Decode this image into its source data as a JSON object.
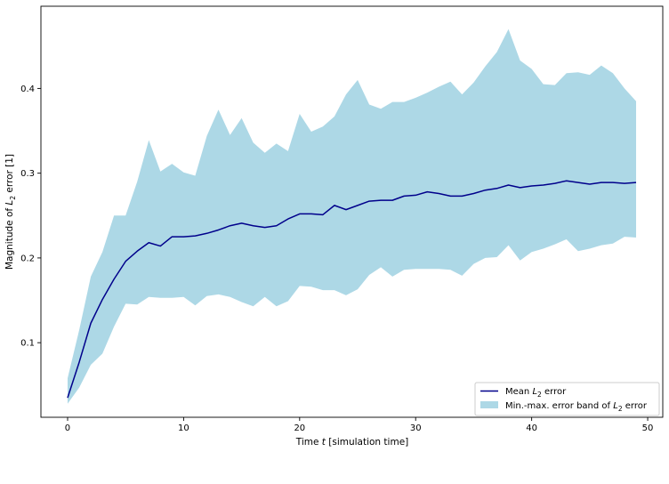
{
  "chart_data": {
    "type": "line",
    "xlabel": "Time t [simulation time]",
    "ylabel": "Magnitude of L2 error [1]",
    "xlim": [
      -2.3,
      51.3
    ],
    "ylim": [
      0.012,
      0.497
    ],
    "xticks": [
      0,
      10,
      20,
      30,
      40,
      50
    ],
    "yticks": [
      0.1,
      0.2,
      0.3,
      0.4
    ],
    "xtick_labels": [
      "0",
      "10",
      "20",
      "30",
      "40",
      "50"
    ],
    "ytick_labels": [
      "0.1",
      "0.2",
      "0.3",
      "0.4"
    ],
    "grid": false,
    "legend_position": "lower right",
    "x": [
      0,
      1,
      2,
      3,
      4,
      5,
      6,
      7,
      8,
      9,
      10,
      11,
      12,
      13,
      14,
      15,
      16,
      17,
      18,
      19,
      20,
      21,
      22,
      23,
      24,
      25,
      26,
      27,
      28,
      29,
      30,
      31,
      32,
      33,
      34,
      35,
      36,
      37,
      38,
      39,
      40,
      41,
      42,
      43,
      44,
      45,
      46,
      47,
      48,
      49
    ],
    "series": [
      {
        "name": "Mean L2 error",
        "role": "line",
        "color": "#00008b",
        "values": [
          0.035,
          0.077,
          0.123,
          0.151,
          0.175,
          0.196,
          0.208,
          0.218,
          0.214,
          0.225,
          0.225,
          0.226,
          0.229,
          0.233,
          0.238,
          0.241,
          0.238,
          0.236,
          0.238,
          0.246,
          0.252,
          0.252,
          0.251,
          0.262,
          0.257,
          0.262,
          0.267,
          0.268,
          0.268,
          0.273,
          0.274,
          0.278,
          0.276,
          0.273,
          0.273,
          0.276,
          0.28,
          0.282,
          0.286,
          0.283,
          0.285,
          0.286,
          0.288,
          0.291,
          0.289,
          0.287,
          0.289,
          0.289,
          0.288,
          0.289
        ]
      },
      {
        "name": "Min.-max. error band of L2 error",
        "role": "band",
        "color": "#add8e6",
        "upper": [
          0.058,
          0.115,
          0.178,
          0.207,
          0.25,
          0.25,
          0.29,
          0.339,
          0.302,
          0.311,
          0.301,
          0.297,
          0.344,
          0.375,
          0.345,
          0.365,
          0.336,
          0.324,
          0.335,
          0.326,
          0.37,
          0.349,
          0.355,
          0.367,
          0.393,
          0.41,
          0.381,
          0.376,
          0.384,
          0.384,
          0.389,
          0.395,
          0.402,
          0.408,
          0.393,
          0.407,
          0.426,
          0.443,
          0.47,
          0.433,
          0.423,
          0.405,
          0.404,
          0.418,
          0.419,
          0.416,
          0.427,
          0.418,
          0.4,
          0.385
        ],
        "lower": [
          0.028,
          0.047,
          0.074,
          0.087,
          0.119,
          0.146,
          0.145,
          0.154,
          0.153,
          0.153,
          0.154,
          0.144,
          0.155,
          0.157,
          0.154,
          0.148,
          0.143,
          0.154,
          0.143,
          0.149,
          0.167,
          0.166,
          0.162,
          0.162,
          0.156,
          0.163,
          0.18,
          0.189,
          0.178,
          0.186,
          0.187,
          0.187,
          0.187,
          0.186,
          0.179,
          0.193,
          0.2,
          0.201,
          0.215,
          0.197,
          0.207,
          0.211,
          0.216,
          0.222,
          0.208,
          0.211,
          0.215,
          0.217,
          0.225,
          0.224
        ]
      }
    ]
  },
  "legend": {
    "mean_prefix": "Mean ",
    "mean_sym": "L",
    "mean_sub": "2",
    "mean_suffix": " error",
    "band_prefix": "Min.-max. error band of ",
    "band_sym": "L",
    "band_sub": "2",
    "band_suffix": " error"
  },
  "axes": {
    "ylabel_prefix": "Magnitude of ",
    "ylabel_sym": "L",
    "ylabel_sub": "2",
    "ylabel_suffix": " error [1]",
    "xlabel_prefix": "Time ",
    "xlabel_sym": "t",
    "xlabel_suffix": " [simulation time]"
  }
}
